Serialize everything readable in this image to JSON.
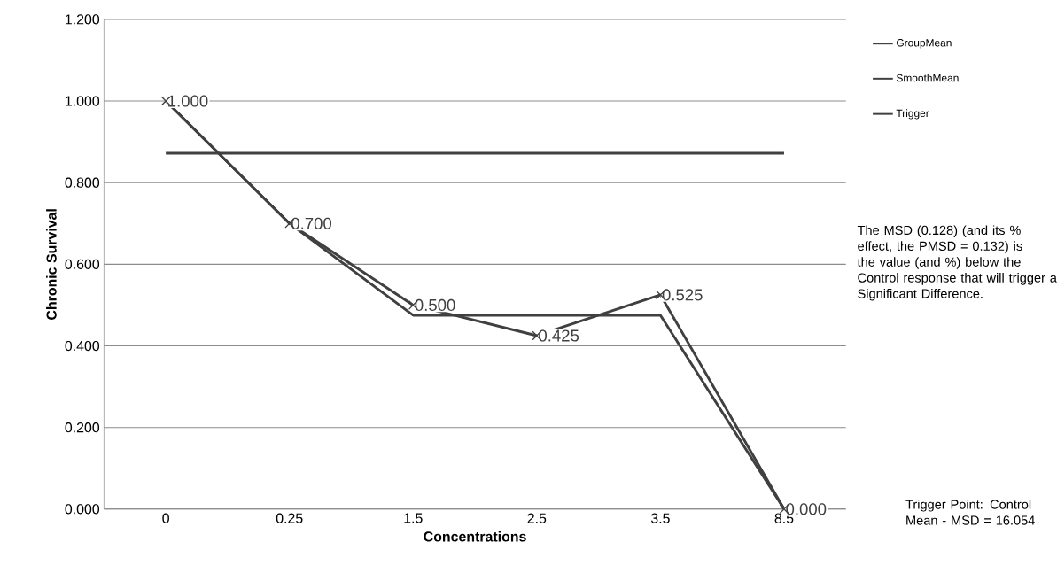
{
  "chart_data": {
    "type": "line",
    "xlabel": "Concentrations",
    "ylabel": "Chronic Survival",
    "categories": [
      "0",
      "0.25",
      "1.5",
      "2.5",
      "3.5",
      "8.5"
    ],
    "series": [
      {
        "name": "GroupMean",
        "color": "#404040",
        "values": [
          1.0,
          0.7,
          0.5,
          0.425,
          0.525,
          0.0
        ],
        "marker": "cross",
        "value_labels": [
          "1.000",
          "0.700",
          "0.500",
          "0.425",
          "0.525",
          "0.000"
        ]
      },
      {
        "name": "SmoothMean",
        "color": "#404040",
        "values": [
          1.0,
          0.7,
          0.475,
          0.475,
          0.475,
          0.0
        ],
        "marker": "none"
      },
      {
        "name": "Trigger",
        "color": "#404040",
        "values": [
          0.872,
          0.872,
          0.872,
          0.872,
          0.872,
          0.872
        ],
        "marker": "none"
      }
    ],
    "ylim": [
      0,
      1.2
    ],
    "yticks": [
      {
        "value": 0,
        "label": "0.000"
      },
      {
        "value": 0.2,
        "label": "0.200"
      },
      {
        "value": 0.4,
        "label": "0.400"
      },
      {
        "value": 0.6,
        "label": "0.600"
      },
      {
        "value": 0.8,
        "label": "0.800"
      },
      {
        "value": 1.0,
        "label": "1.000"
      },
      {
        "value": 1.2,
        "label": "1.200"
      }
    ],
    "grid": "y",
    "legend": "right",
    "annotations": [
      "The MSD (0.128) (and its % effect, the PMSD = 0.132) is the value (and %) below the Control response that will trigger a Significant Difference.",
      "Trigger Point: Control Mean - MSD = 16.054"
    ]
  }
}
